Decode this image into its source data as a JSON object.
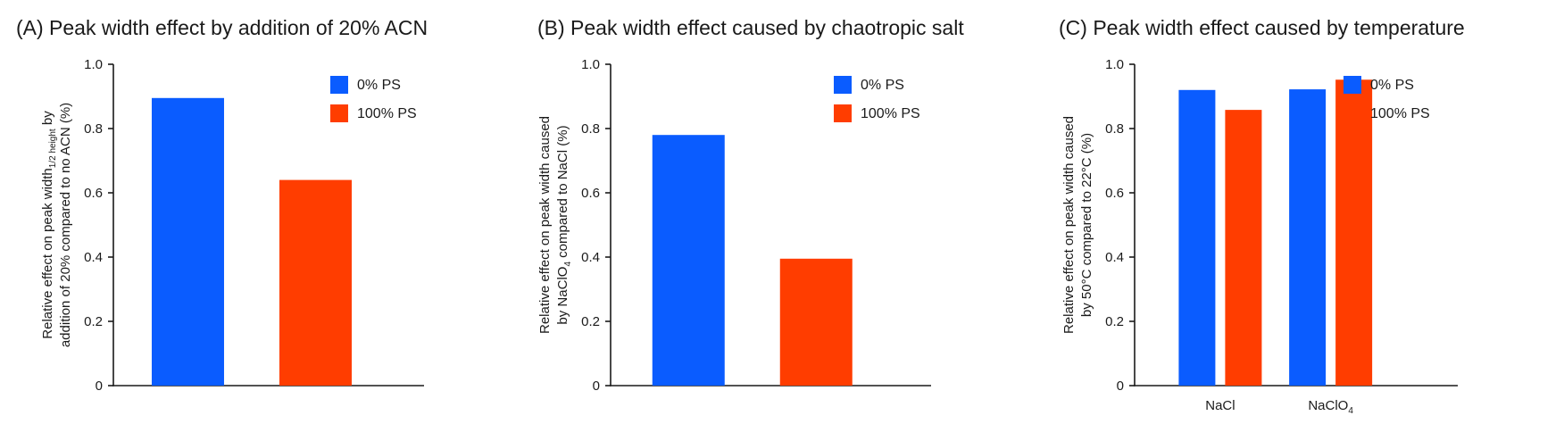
{
  "colors": {
    "series_0": "#0a5cff",
    "series_1": "#ff3d00"
  },
  "chart_data": [
    {
      "type": "bar",
      "title": "(A) Peak width effect by addition of 20% ACN",
      "ylabel_line1": "Relative effect on peak width",
      "ylabel_sub": "1/2 height",
      "ylabel_line1_end": " by",
      "ylabel_line2": "addition of 20% compared to no ACN (%)",
      "ylabel_line2_sub": "",
      "ylabel_line2_end": "",
      "ylim": [
        0,
        1.0
      ],
      "yticks": [
        "0",
        "0.2",
        "0.4",
        "0.6",
        "0.8",
        "1.0"
      ],
      "legend_position": "top-right",
      "categories": [
        ""
      ],
      "category_subs": [
        ""
      ],
      "series": [
        {
          "name": "0% PS",
          "values": [
            0.895
          ]
        },
        {
          "name": "100% PS",
          "values": [
            0.64
          ]
        }
      ]
    },
    {
      "type": "bar",
      "title": "(B) Peak width effect caused by chaotropic salt",
      "ylabel_line1": "Relative effect on peak width caused",
      "ylabel_sub": "",
      "ylabel_line1_end": "",
      "ylabel_line2": "by NaClO",
      "ylabel_line2_sub": "4",
      "ylabel_line2_end": " compared to NaCl (%)",
      "ylim": [
        0,
        1.0
      ],
      "yticks": [
        "0",
        "0.2",
        "0.4",
        "0.6",
        "0.8",
        "1.0"
      ],
      "legend_position": "top-right",
      "categories": [
        ""
      ],
      "category_subs": [
        ""
      ],
      "series": [
        {
          "name": "0% PS",
          "values": [
            0.78
          ]
        },
        {
          "name": "100% PS",
          "values": [
            0.395
          ]
        }
      ]
    },
    {
      "type": "bar",
      "title": "(C) Peak width effect caused by temperature",
      "ylabel_line1": "Relative effect on peak width caused",
      "ylabel_sub": "",
      "ylabel_line1_end": "",
      "ylabel_line2": "by 50°C compared to 22°C (%)",
      "ylabel_line2_sub": "",
      "ylabel_line2_end": "",
      "ylim": [
        0,
        1.0
      ],
      "yticks": [
        "0",
        "0.2",
        "0.4",
        "0.6",
        "0.8",
        "1.0"
      ],
      "legend_position": "top-right",
      "categories": [
        "NaCl",
        "NaClO"
      ],
      "category_subs": [
        "",
        "4"
      ],
      "series": [
        {
          "name": "0% PS",
          "values": [
            0.92,
            0.922
          ]
        },
        {
          "name": "100% PS",
          "values": [
            0.858,
            0.952
          ]
        }
      ]
    }
  ]
}
